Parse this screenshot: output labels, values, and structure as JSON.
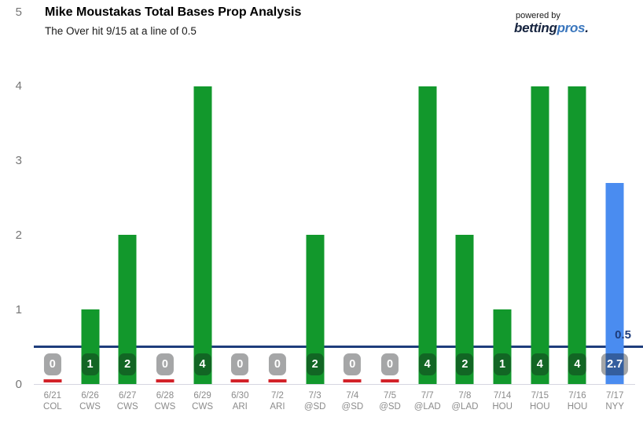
{
  "header": {
    "title": "Mike Moustakas Total Bases Prop Analysis",
    "subtitle": "The Over hit 9/15 at a line of 0.5",
    "powered_by": "powered by",
    "brand_part1": "betting",
    "brand_part2": "pros",
    "brand_dot": "."
  },
  "chart_data": {
    "type": "bar",
    "title": "Mike Moustakas Total Bases Prop Analysis",
    "subtitle": "The Over hit 9/15 at a line of 0.5",
    "categories": [
      "6/21",
      "6/26",
      "6/27",
      "6/28",
      "6/29",
      "6/30",
      "7/2",
      "7/3",
      "7/4",
      "7/5",
      "7/7",
      "7/8",
      "7/14",
      "7/15",
      "7/16",
      "7/17"
    ],
    "opponents": [
      "COL",
      "CWS",
      "CWS",
      "CWS",
      "CWS",
      "ARI",
      "ARI",
      "@SD",
      "@SD",
      "@SD",
      "@LAD",
      "@LAD",
      "HOU",
      "HOU",
      "HOU",
      "NYY"
    ],
    "values": [
      0,
      1,
      2,
      0,
      4,
      0,
      0,
      2,
      0,
      0,
      4,
      2,
      1,
      4,
      4,
      2.7
    ],
    "value_labels": [
      "0",
      "1",
      "2",
      "0",
      "4",
      "0",
      "0",
      "2",
      "0",
      "0",
      "4",
      "2",
      "1",
      "4",
      "4",
      "2.7"
    ],
    "bar_kinds": [
      "result",
      "result",
      "result",
      "result",
      "result",
      "result",
      "result",
      "result",
      "result",
      "result",
      "result",
      "result",
      "result",
      "result",
      "result",
      "projection"
    ],
    "prop_line": {
      "value": 0.5,
      "label": "0.5"
    },
    "ylim": [
      0,
      5
    ],
    "yticks": [
      0,
      1,
      2,
      3,
      4,
      5
    ],
    "grid": false,
    "legend": false,
    "xlabel": "",
    "ylabel": "",
    "colors": {
      "result_bar": "#12982c",
      "projection_bar": "#4a8cf0",
      "zero_marker": "#d32229",
      "prop_line": "#1e3d7c",
      "badge_text": "#ffffff",
      "axis_text": "#757575",
      "x_tick_text": "#8b8b8b",
      "brand_navy": "#16243f",
      "brand_blue": "#3a76bd"
    }
  }
}
